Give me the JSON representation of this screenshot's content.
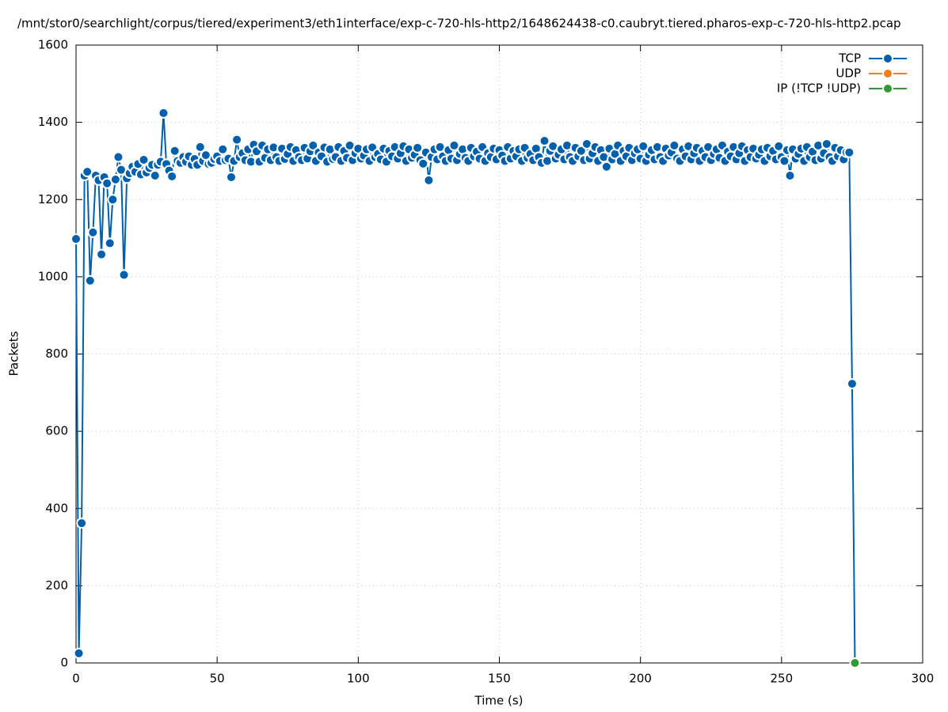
{
  "chart_data": {
    "type": "line",
    "title": "/mnt/stor0/searchlight/corpus/tiered/experiment3/eth1interface/exp-c-720-hls-http2/1648624438-c0.caubryt.tiered.pharos-exp-c-720-hls-http2.pcap",
    "x_label": "Time (s)",
    "y_label": "Packets",
    "xlim": [
      0,
      300
    ],
    "ylim": [
      0,
      1600
    ],
    "xticks": [
      0,
      50,
      100,
      150,
      200,
      250,
      300
    ],
    "yticks": [
      0,
      200,
      400,
      600,
      800,
      1000,
      1200,
      1400,
      1600
    ],
    "grid": true,
    "legend": "top-right",
    "series": [
      {
        "name": "TCP",
        "color": "#0060ad",
        "x": [
          0,
          1,
          2,
          3,
          4,
          5,
          6,
          7,
          8,
          9,
          10,
          11,
          12,
          13,
          14,
          15,
          16,
          17,
          18,
          19,
          20,
          21,
          22,
          23,
          24,
          25,
          26,
          27,
          28,
          29,
          30,
          31,
          32,
          33,
          34,
          35,
          36,
          37,
          38,
          39,
          40,
          41,
          42,
          43,
          44,
          45,
          46,
          47,
          48,
          49,
          50,
          51,
          52,
          53,
          54,
          55,
          56,
          57,
          58,
          59,
          60,
          61,
          62,
          63,
          64,
          65,
          66,
          67,
          68,
          69,
          70,
          71,
          72,
          73,
          74,
          75,
          76,
          77,
          78,
          79,
          80,
          81,
          82,
          83,
          84,
          85,
          86,
          87,
          88,
          89,
          90,
          91,
          92,
          93,
          94,
          95,
          96,
          97,
          98,
          99,
          100,
          101,
          102,
          103,
          104,
          105,
          106,
          107,
          108,
          109,
          110,
          111,
          112,
          113,
          114,
          115,
          116,
          117,
          118,
          119,
          120,
          121,
          122,
          123,
          124,
          125,
          126,
          127,
          128,
          129,
          130,
          131,
          132,
          133,
          134,
          135,
          136,
          137,
          138,
          139,
          140,
          141,
          142,
          143,
          144,
          145,
          146,
          147,
          148,
          149,
          150,
          151,
          152,
          153,
          154,
          155,
          156,
          157,
          158,
          159,
          160,
          161,
          162,
          163,
          164,
          165,
          166,
          167,
          168,
          169,
          170,
          171,
          172,
          173,
          174,
          175,
          176,
          177,
          178,
          179,
          180,
          181,
          182,
          183,
          184,
          185,
          186,
          187,
          188,
          189,
          190,
          191,
          192,
          193,
          194,
          195,
          196,
          197,
          198,
          199,
          200,
          201,
          202,
          203,
          204,
          205,
          206,
          207,
          208,
          209,
          210,
          211,
          212,
          213,
          214,
          215,
          216,
          217,
          218,
          219,
          220,
          221,
          222,
          223,
          224,
          225,
          226,
          227,
          228,
          229,
          230,
          231,
          232,
          233,
          234,
          235,
          236,
          237,
          238,
          239,
          240,
          241,
          242,
          243,
          244,
          245,
          246,
          247,
          248,
          249,
          250,
          251,
          252,
          253,
          254,
          255,
          256,
          257,
          258,
          259,
          260,
          261,
          262,
          263,
          264,
          265,
          266,
          267,
          268,
          269,
          270,
          271,
          272,
          273,
          274,
          275,
          276
        ],
        "values": [
          1098,
          25,
          362,
          1262,
          1272,
          990,
          1115,
          1262,
          1250,
          1058,
          1258,
          1242,
          1087,
          1200,
          1252,
          1310,
          1277,
          1005,
          1255,
          1268,
          1285,
          1272,
          1292,
          1265,
          1303,
          1270,
          1282,
          1290,
          1262,
          1290,
          1298,
          1424,
          1292,
          1275,
          1260,
          1326,
          1300,
          1295,
          1310,
          1298,
          1312,
          1290,
          1305,
          1290,
          1336,
          1300,
          1315,
          1292,
          1295,
          1305,
          1312,
          1300,
          1330,
          1302,
          1306,
          1258,
          1300,
          1355,
          1310,
          1320,
          1302,
          1330,
          1298,
          1342,
          1325,
          1298,
          1340,
          1308,
          1330,
          1302,
          1335,
          1310,
          1300,
          1332,
          1305,
          1318,
          1336,
          1300,
          1328,
          1310,
          1302,
          1334,
          1306,
          1325,
          1340,
          1300,
          1322,
          1312,
          1335,
          1298,
          1330,
          1305,
          1310,
          1336,
          1300,
          1326,
          1308,
          1340,
          1302,
          1320,
          1332,
          1306,
          1314,
          1330,
          1300,
          1335,
          1310,
          1318,
          1304,
          1332,
          1298,
          1326,
          1312,
          1336,
          1306,
          1320,
          1338,
          1300,
          1330,
          1308,
          1316,
          1334,
          1302,
          1293,
          1322,
          1250,
          1310,
          1330,
          1304,
          1336,
          1312,
          1300,
          1328,
          1306,
          1340,
          1302,
          1318,
          1330,
          1308,
          1300,
          1334,
          1312,
          1324,
          1306,
          1336,
          1300,
          1320,
          1310,
          1332,
          1304,
          1328,
          1314,
          1300,
          1336,
          1306,
          1326,
          1312,
          1330,
          1300,
          1334,
          1308,
          1318,
          1302,
          1332,
          1310,
          1295,
          1352,
          1300,
          1326,
          1338,
          1306,
          1316,
          1330,
          1304,
          1340,
          1310,
          1300,
          1334,
          1312,
          1326,
          1302,
          1344,
          1306,
          1320,
          1336,
          1300,
          1328,
          1310,
          1285,
          1332,
          1304,
          1318,
          1340,
          1300,
          1326,
          1312,
          1334,
          1302,
          1320,
          1330,
          1306,
          1338,
          1300,
          1316,
          1328,
          1304,
          1336,
          1310,
          1300,
          1332,
          1314,
          1322,
          1340,
          1306,
          1300,
          1330,
          1312,
          1338,
          1304,
          1320,
          1334,
          1300,
          1326,
          1310,
          1336,
          1302,
          1318,
          1330,
          1308,
          1340,
          1300,
          1324,
          1312,
          1336,
          1304,
          1320,
          1338,
          1300,
          1328,
          1310,
          1332,
          1306,
          1316,
          1330,
          1300,
          1334,
          1312,
          1326,
          1304,
          1338,
          1310,
          1300,
          1328,
          1262,
          1330,
          1306,
          1318,
          1332,
          1300,
          1336,
          1310,
          1324,
          1302,
          1340,
          1306,
          1320,
          1344,
          1310,
          1300,
          1334,
          1312,
          1328,
          1304,
          1322,
          1322,
          723,
          0
        ]
      },
      {
        "name": "UDP",
        "color": "#f07f1c",
        "x": [
          276
        ],
        "values": [
          0
        ]
      },
      {
        "name": "IP (!TCP  !UDP)",
        "color": "#2f9a2f",
        "x": [
          276
        ],
        "values": [
          0
        ]
      }
    ]
  }
}
